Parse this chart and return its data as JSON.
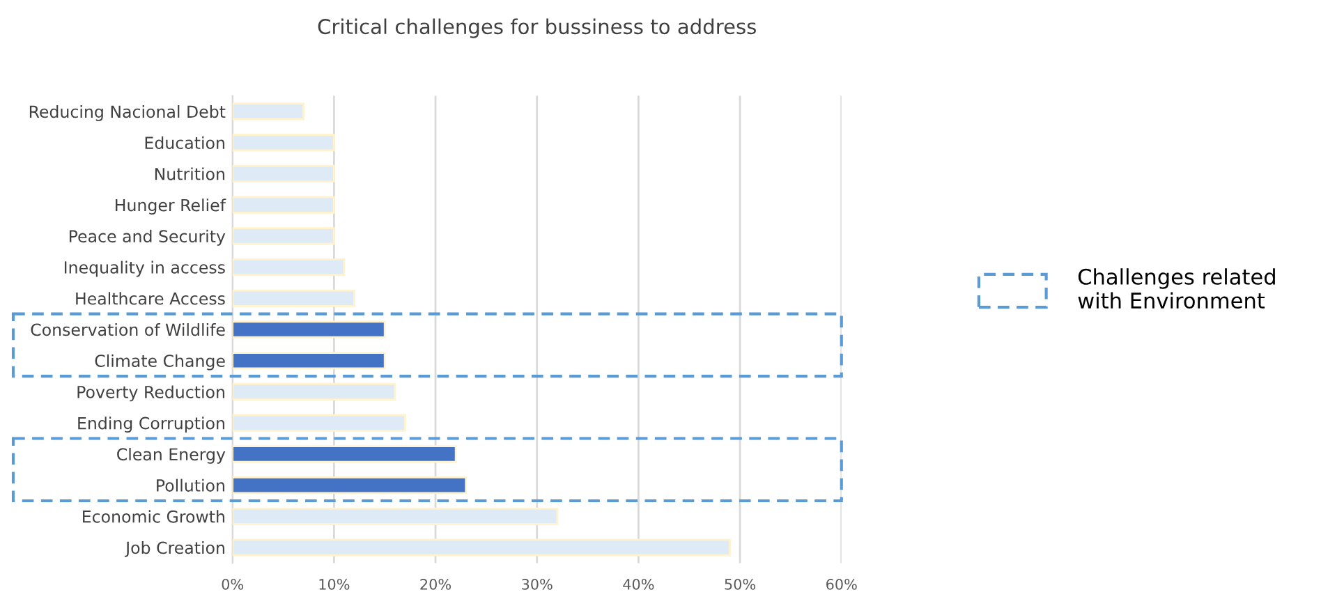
{
  "chart_data": {
    "type": "bar",
    "orientation": "horizontal",
    "title": "Critical challenges for bussiness to address",
    "categories": [
      "Reducing Nacional Debt",
      "Education",
      "Nutrition",
      "Hunger Relief",
      "Peace and Security",
      "Inequality in access",
      "Healthcare Access",
      "Conservation of Wildlife",
      "Climate Change",
      "Poverty Reduction",
      "Ending Corruption",
      "Clean Energy",
      "Pollution",
      "Economic Growth",
      "Job Creation"
    ],
    "values": [
      7,
      10,
      10,
      10,
      10,
      11,
      12,
      15,
      15,
      16,
      17,
      22,
      23,
      32,
      49
    ],
    "colors": [
      "#deebf7",
      "#deebf7",
      "#deebf7",
      "#deebf7",
      "#deebf7",
      "#deebf7",
      "#deebf7",
      "#4472c4",
      "#4472c4",
      "#deebf7",
      "#deebf7",
      "#4472c4",
      "#4472c4",
      "#deebf7",
      "#deebf7"
    ],
    "xlim": [
      0,
      60
    ],
    "xticks": [
      {
        "value": 0,
        "label": "0%"
      },
      {
        "value": 10,
        "label": "10%"
      },
      {
        "value": 20,
        "label": "20%"
      },
      {
        "value": 30,
        "label": "30%"
      },
      {
        "value": 40,
        "label": "40%"
      },
      {
        "value": 50,
        "label": "50%"
      },
      {
        "value": 60,
        "label": "60%"
      }
    ],
    "grid": "x",
    "annotations": [
      "Challenges related\nwith Environment"
    ]
  }
}
